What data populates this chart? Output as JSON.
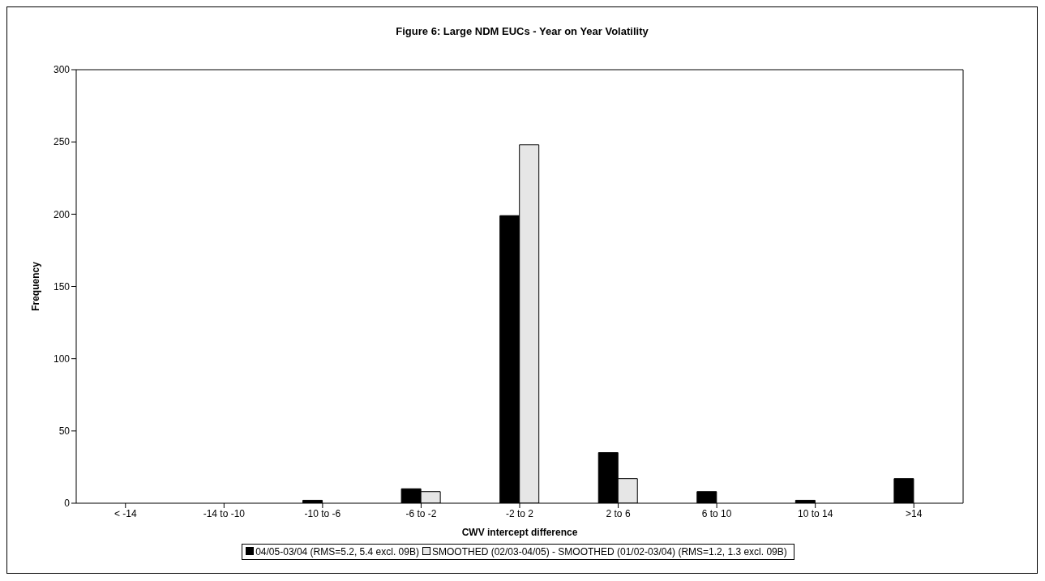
{
  "chart_data": {
    "type": "bar",
    "title": "Figure 6: Large NDM EUCs - Year on Year Volatility",
    "xlabel": "CWV intercept difference",
    "ylabel": "Frequency",
    "categories": [
      "< -14",
      "-14 to -10",
      "-10 to -6",
      "-6 to -2",
      "-2 to 2",
      "2 to 6",
      "6 to 10",
      "10 to 14",
      ">14"
    ],
    "series": [
      {
        "name": "04/05-03/04 (RMS=5.2, 5.4 excl. 09B)",
        "color": "#000000",
        "values": [
          0,
          0,
          2,
          10,
          199,
          35,
          8,
          2,
          17
        ]
      },
      {
        "name": "SMOOTHED (02/03-04/05) - SMOOTHED (01/02-03/04) (RMS=1.2, 1.3 excl. 09B)",
        "color": "#e6e6e6",
        "values": [
          0,
          0,
          0,
          8,
          248,
          17,
          0,
          0,
          0
        ]
      }
    ],
    "ylim": [
      0,
      300
    ],
    "yticks": [
      0,
      50,
      100,
      150,
      200,
      250,
      300
    ],
    "legend": "bottom"
  }
}
